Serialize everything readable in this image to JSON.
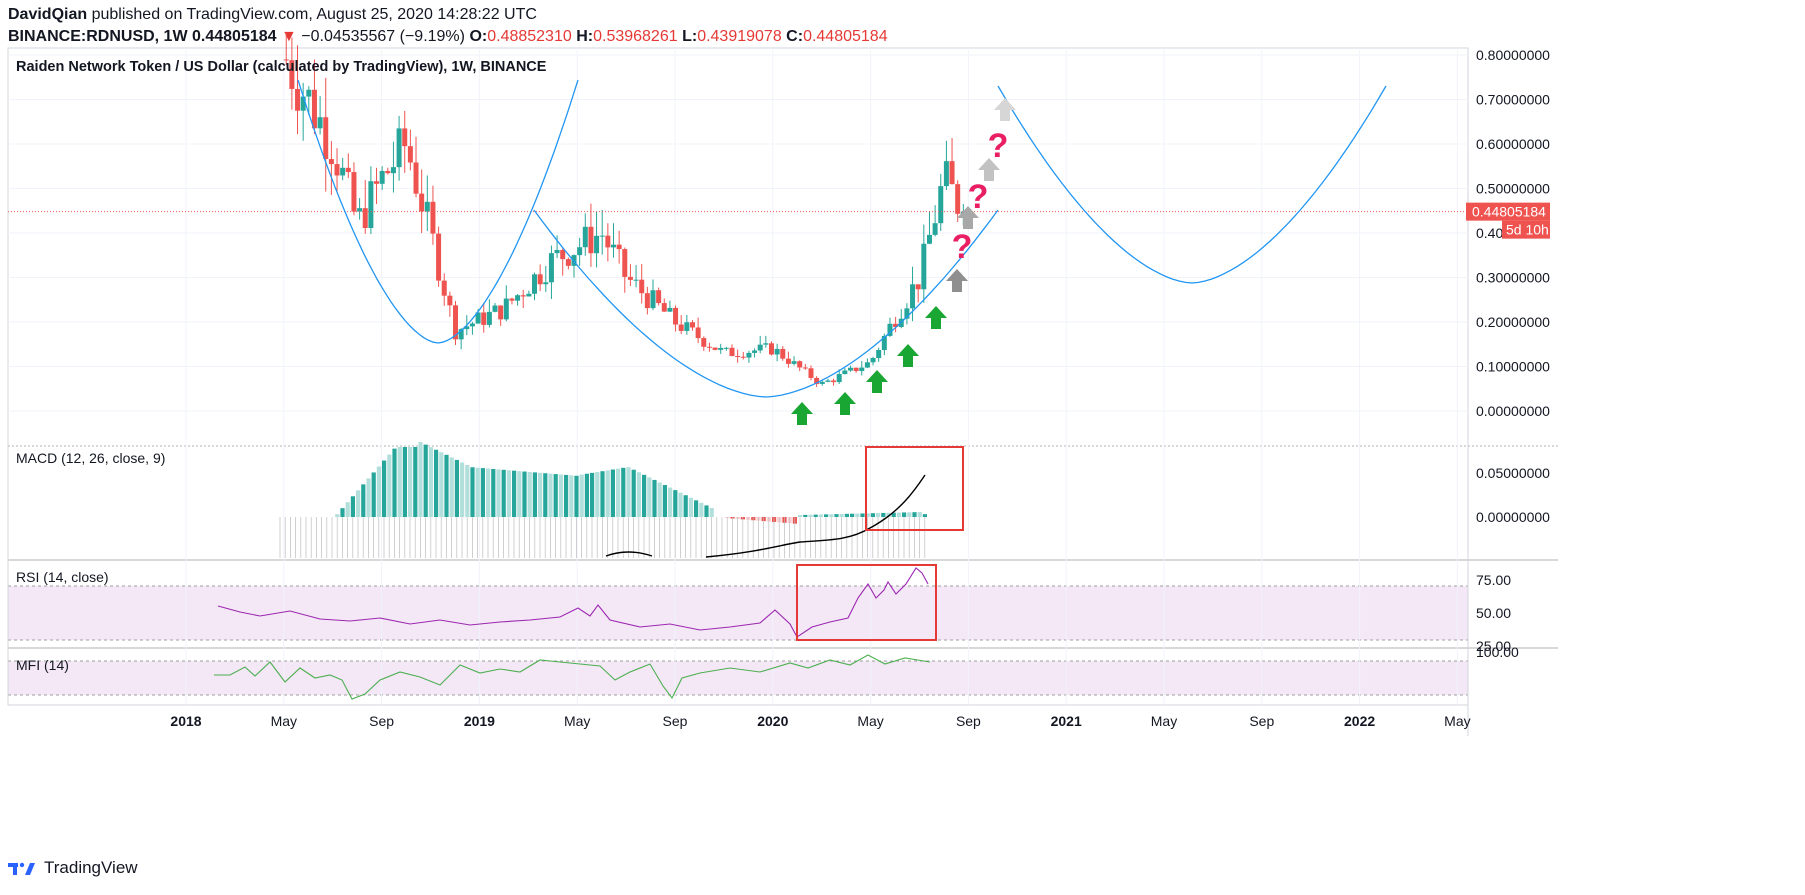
{
  "header": {
    "author": "DavidQian",
    "published": "published on TradingView.com, August 25, 2020 14:28:22 UTC",
    "symbol": "BINANCE:RDNUSD, 1W",
    "price": "0.44805184",
    "change": "−0.04535567 (−9.19%)",
    "o_label": "O:",
    "o": "0.48852310",
    "h_label": "H:",
    "h": "0.53968261",
    "l_label": "L:",
    "l": "0.43919078",
    "c_label": "C:",
    "c": "0.44805184"
  },
  "footer": {
    "brand": "TradingView"
  },
  "colors": {
    "up": "#26a69a",
    "down": "#ef5350",
    "bowl": "#2196f3",
    "rsi": "#9c27b0",
    "mfi": "#4caf50",
    "arrow_green": "#1aa632",
    "box": "#e53935",
    "question": "#e91e63"
  },
  "chart_data": [
    {
      "type": "candlestick",
      "title": "Raiden Network Token / US Dollar (calculated by TradingView), 1W, BINANCE",
      "y_ticks": [
        "0.80000000",
        "0.70000000",
        "0.60000000",
        "0.50000000",
        "0.40000000",
        "0.30000000",
        "0.20000000",
        "0.10000000",
        "0.00000000"
      ],
      "ylim": [
        -0.04,
        0.82
      ],
      "x_ticks": [
        "2018",
        "May",
        "Sep",
        "2019",
        "May",
        "Sep",
        "2020",
        "May",
        "Sep",
        "2021",
        "May",
        "Sep",
        "2022",
        "May"
      ],
      "last_price_label": "0.44805184",
      "countdown_label": "5d 10h",
      "annotations": [
        "?",
        "?",
        "?"
      ],
      "price_points": [
        {
          "date": "2018-05",
          "close": 0.8
        },
        {
          "date": "2018-07",
          "close": 0.6
        },
        {
          "date": "2018-08",
          "close": 0.42
        },
        {
          "date": "2018-09",
          "close": 0.52
        },
        {
          "date": "2018-10",
          "close": 0.6
        },
        {
          "date": "2018-11",
          "close": 0.4
        },
        {
          "date": "2018-12",
          "close": 0.18
        },
        {
          "date": "2019-02",
          "close": 0.23
        },
        {
          "date": "2019-04",
          "close": 0.34
        },
        {
          "date": "2019-06",
          "close": 0.4
        },
        {
          "date": "2019-07",
          "close": 0.3
        },
        {
          "date": "2019-09",
          "close": 0.2
        },
        {
          "date": "2019-11",
          "close": 0.13
        },
        {
          "date": "2020-01",
          "close": 0.14
        },
        {
          "date": "2020-03",
          "close": 0.06
        },
        {
          "date": "2020-05",
          "close": 0.11
        },
        {
          "date": "2020-06",
          "close": 0.21
        },
        {
          "date": "2020-07",
          "close": 0.3
        },
        {
          "date": "2020-08",
          "close": 0.52
        },
        {
          "date": "2020-08-25",
          "close": 0.448
        }
      ]
    },
    {
      "type": "bar",
      "title": "MACD (12, 26, close, 9)",
      "y_ticks": [
        "0.05000000",
        "0.00000000"
      ]
    },
    {
      "type": "line",
      "title": "RSI (14, close)",
      "y_ticks": [
        "75.00",
        "50.00",
        "25.00"
      ]
    },
    {
      "type": "line",
      "title": "MFI (14)",
      "y_ticks": [
        "100.00"
      ]
    }
  ]
}
